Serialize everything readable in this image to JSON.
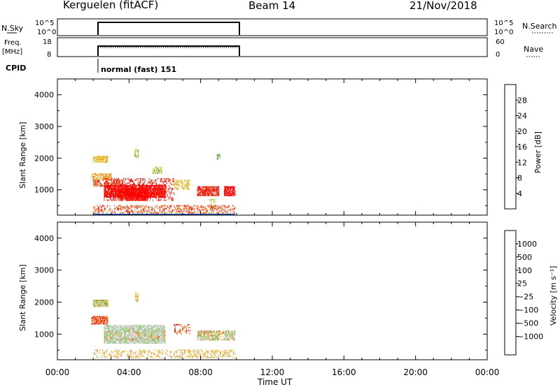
{
  "header": {
    "title": "Kerguelen (fitACF)",
    "beam": "Beam 14",
    "date": "21/Nov/2018"
  },
  "top_panels": {
    "nsky_label": "N.Sky",
    "nsky_ticks": [
      "10^5",
      "10^0"
    ],
    "nsearch_label": "N.Search",
    "nsearch_ticks": [
      "10^5",
      "10^0"
    ],
    "freq_label_1": "Freq.",
    "freq_label_2": "[MHz]",
    "freq_ticks": [
      "18",
      "8"
    ],
    "nave_label": "Nave",
    "nave_ticks": [
      "60",
      "0"
    ],
    "cpid_label": "CPID",
    "cpid_text": "normal (fast) 151"
  },
  "colors": {
    "power": [
      "#0000ff",
      "#1f4fa8",
      "#2e7fbf",
      "#3d8b6e",
      "#6aa84f",
      "#b5cc3d",
      "#f2b61a",
      "#f29b1a",
      "#ee7b1a",
      "#e85a1a",
      "#ff0000"
    ],
    "velocity": [
      "#1a1aa8",
      "#2a5fb8",
      "#3a8a6e",
      "#6fd34b",
      "#c8c8c8",
      "#c8c8c8",
      "#f0b81e",
      "#f08a1e",
      "#ee5a1a",
      "#ff0000"
    ]
  },
  "chart_data": [
    {
      "type": "heatmap",
      "name": "power",
      "ylabel": "Slant Range [km]",
      "ylim": [
        200,
        4500
      ],
      "xlim": [
        0,
        24
      ],
      "y_ticks": [
        "1000",
        "2000",
        "3000",
        "4000"
      ],
      "colorbar_label": "Power [dB]",
      "colorbar_ticks": [
        "4",
        "8",
        "12",
        "16",
        "20",
        "24",
        "28"
      ],
      "colorbar_range": [
        0,
        32
      ],
      "regions": [
        {
          "t0": 2.0,
          "t1": 2.8,
          "r0": 1850,
          "r1": 2050,
          "value": 6,
          "density": 0.7
        },
        {
          "t0": 1.9,
          "t1": 3.0,
          "r0": 1300,
          "r1": 1500,
          "value": 7,
          "density": 0.6
        },
        {
          "t0": 2.0,
          "t1": 3.6,
          "r0": 1100,
          "r1": 1300,
          "value": 9,
          "density": 0.5
        },
        {
          "t0": 2.6,
          "t1": 6.0,
          "r0": 750,
          "r1": 1150,
          "value": 16,
          "density": 0.85
        },
        {
          "t0": 3.4,
          "t1": 5.0,
          "r0": 650,
          "r1": 1050,
          "value": 21,
          "density": 0.8
        },
        {
          "t0": 2.6,
          "t1": 6.5,
          "r0": 650,
          "r1": 1350,
          "value": 10,
          "density": 0.3
        },
        {
          "t0": 4.3,
          "t1": 4.5,
          "r0": 2000,
          "r1": 2300,
          "value": 5,
          "density": 0.5
        },
        {
          "t0": 5.3,
          "t1": 5.8,
          "r0": 1500,
          "r1": 1700,
          "value": 5,
          "density": 0.5
        },
        {
          "t0": 6.5,
          "t1": 7.4,
          "r0": 1000,
          "r1": 1300,
          "value": 6,
          "density": 0.4
        },
        {
          "t0": 7.8,
          "t1": 9.0,
          "r0": 800,
          "r1": 1100,
          "value": 10,
          "density": 0.75
        },
        {
          "t0": 9.3,
          "t1": 9.9,
          "r0": 800,
          "r1": 1100,
          "value": 12,
          "density": 0.8
        },
        {
          "t0": 8.5,
          "t1": 8.8,
          "r0": 400,
          "r1": 700,
          "value": 5,
          "density": 0.4
        },
        {
          "t0": 8.9,
          "t1": 9.1,
          "r0": 1950,
          "r1": 2100,
          "value": 4,
          "density": 0.5
        },
        {
          "t0": 2.0,
          "t1": 9.9,
          "r0": 250,
          "r1": 500,
          "value": 9,
          "density": 0.35
        }
      ]
    },
    {
      "type": "heatmap",
      "name": "velocity",
      "ylabel": "Slant Range [km]",
      "ylim": [
        200,
        4500
      ],
      "xlim": [
        0,
        24
      ],
      "y_ticks": [
        "1000",
        "2000",
        "3000",
        "4000"
      ],
      "xlabel": "Time UT",
      "x_ticks": [
        "00:00",
        "04:00",
        "08:00",
        "12:00",
        "16:00",
        "20:00",
        "00:00"
      ],
      "colorbar_label": "Velocity [m s⁻¹]",
      "colorbar_ticks": [
        "1000",
        "500",
        "100",
        "25",
        "−25",
        "−100",
        "−500",
        "−1000"
      ],
      "regions": [
        {
          "t0": 2.0,
          "t1": 2.8,
          "r0": 1850,
          "r1": 2050,
          "value": 6,
          "density": 0.8
        },
        {
          "t0": 2.0,
          "t1": 2.8,
          "r0": 1850,
          "r1": 2050,
          "value": 3,
          "density": 0.3
        },
        {
          "t0": 1.9,
          "t1": 2.8,
          "r0": 1300,
          "r1": 1550,
          "value": 8,
          "density": 0.7
        },
        {
          "t0": 2.6,
          "t1": 6.0,
          "r0": 700,
          "r1": 1250,
          "value": 4,
          "density": 0.8
        },
        {
          "t0": 2.6,
          "t1": 6.0,
          "r0": 800,
          "r1": 1100,
          "value": 7,
          "density": 0.12
        },
        {
          "t0": 4.3,
          "t1": 4.5,
          "r0": 2000,
          "r1": 2300,
          "value": 6,
          "density": 0.5
        },
        {
          "t0": 6.5,
          "t1": 7.4,
          "r0": 1000,
          "r1": 1300,
          "value": 8,
          "density": 0.3
        },
        {
          "t0": 7.8,
          "t1": 9.0,
          "r0": 800,
          "r1": 1100,
          "value": 4,
          "density": 0.7
        },
        {
          "t0": 9.3,
          "t1": 9.9,
          "r0": 800,
          "r1": 1100,
          "value": 4,
          "density": 0.7
        },
        {
          "t0": 7.8,
          "t1": 9.9,
          "r0": 800,
          "r1": 1100,
          "value": 7,
          "density": 0.2
        },
        {
          "t0": 2.0,
          "t1": 9.9,
          "r0": 250,
          "r1": 500,
          "value": 6,
          "density": 0.3
        }
      ]
    }
  ]
}
